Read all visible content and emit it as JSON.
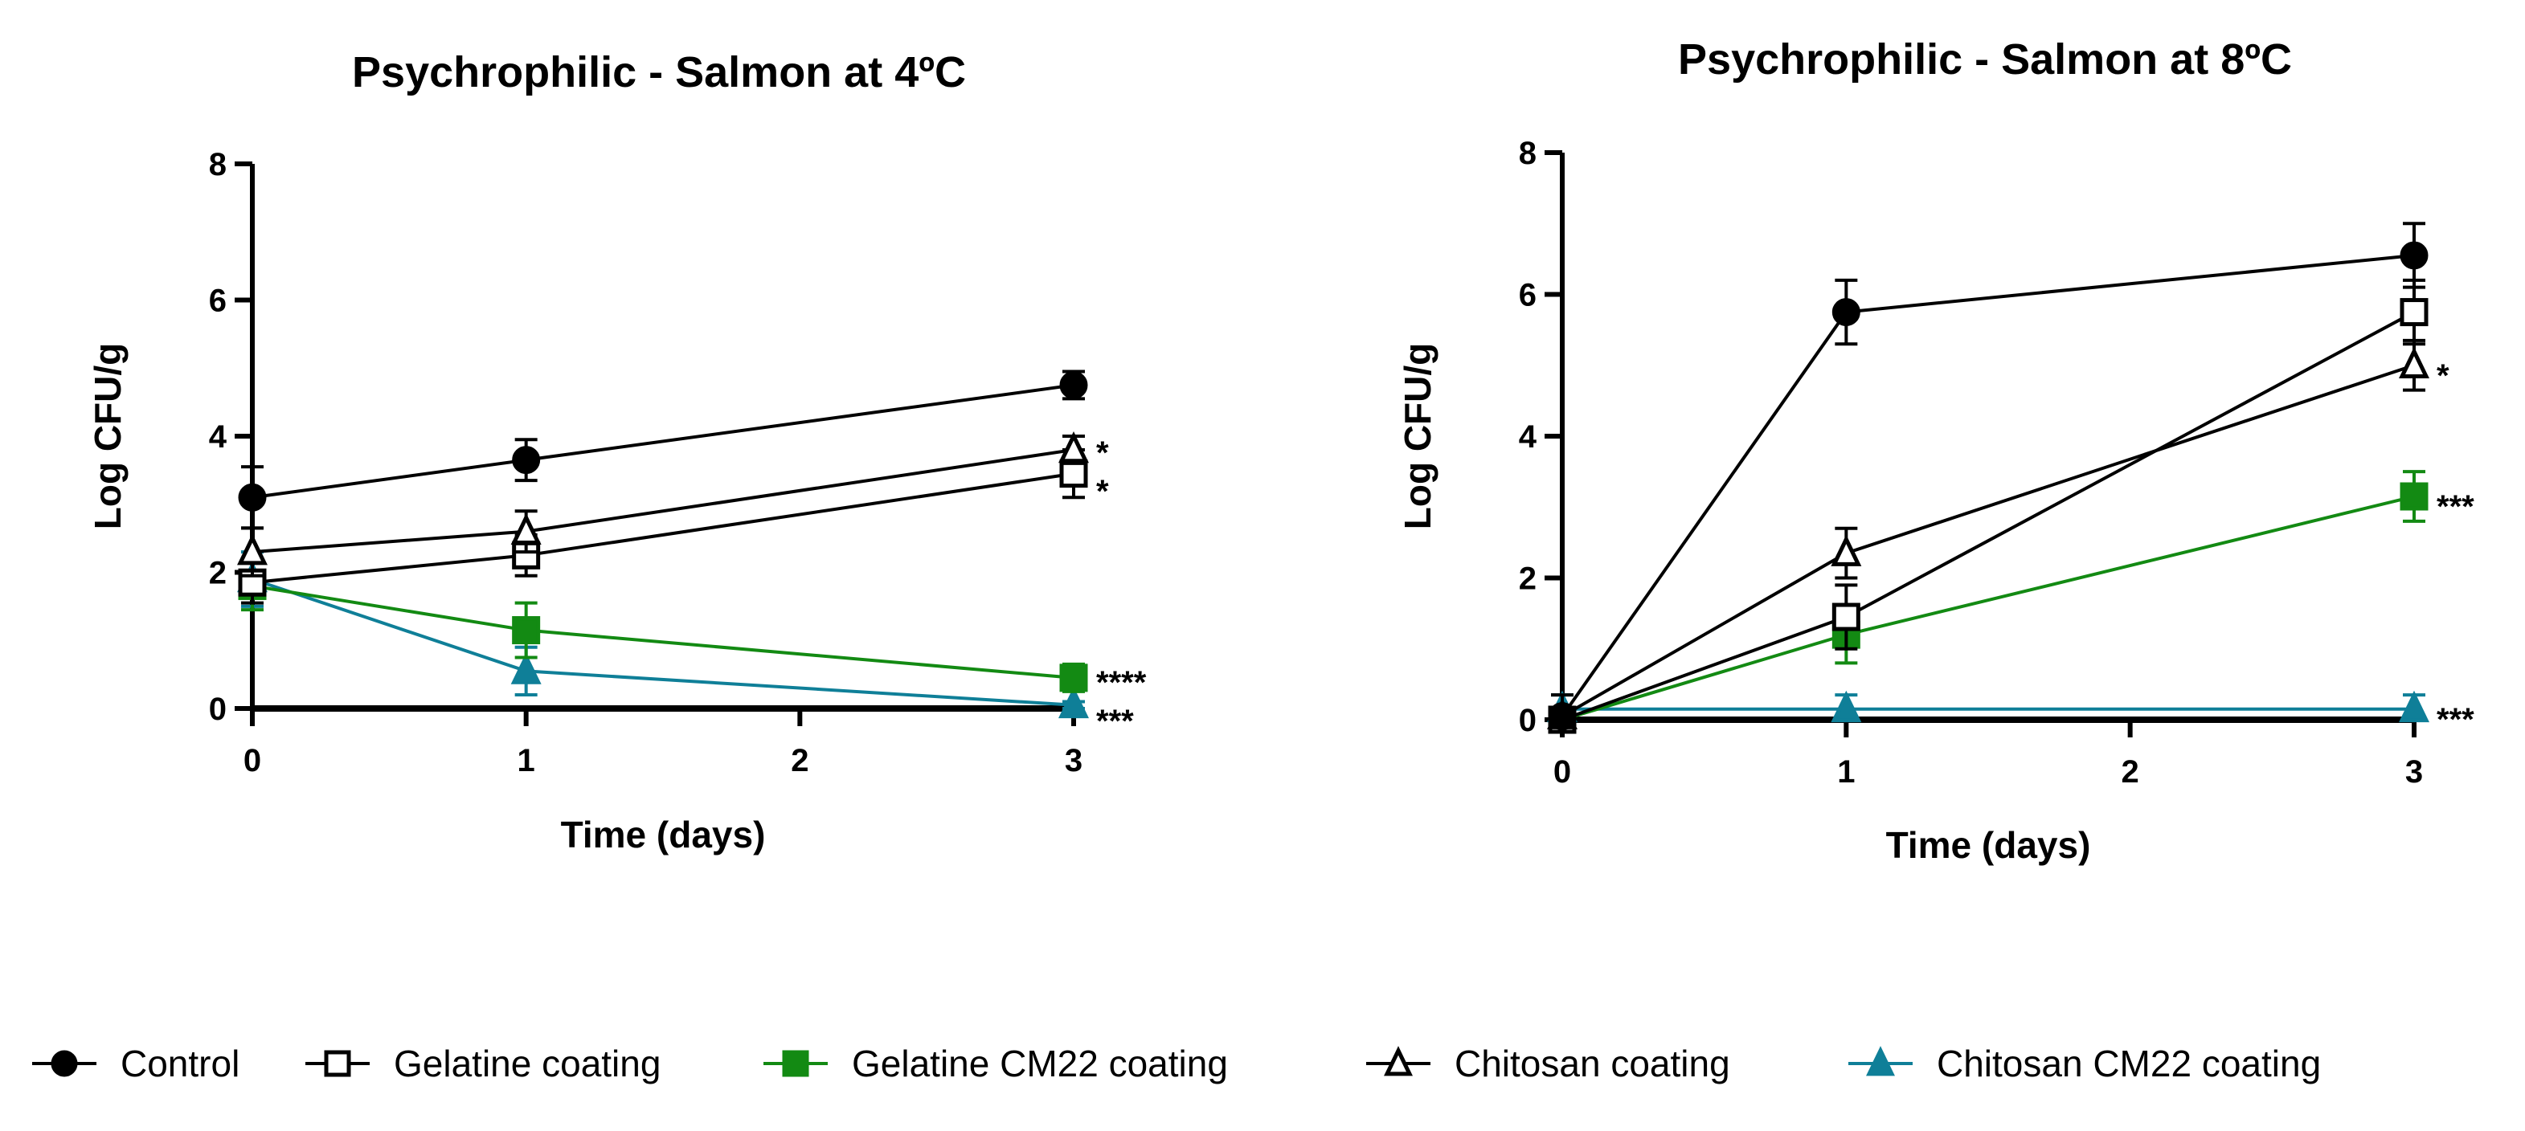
{
  "chart_data": [
    {
      "type": "line",
      "title": "Psychrophilic - Salmon at 4ºC",
      "xlabel": "Time (days)",
      "ylabel": "Log CFU/g",
      "x": [
        0,
        1,
        3
      ],
      "xlim": [
        0,
        3
      ],
      "ylim": [
        0,
        8
      ],
      "xticks": [
        "0",
        "1",
        "2",
        "3"
      ],
      "yticks": [
        "0",
        "2",
        "4",
        "6",
        "8"
      ],
      "grid": false,
      "series": [
        {
          "name": "Control",
          "values": [
            3.1,
            3.65,
            4.75
          ],
          "errors": [
            0.45,
            0.3,
            0.2
          ],
          "annotation": ""
        },
        {
          "name": "Gelatine coating",
          "values": [
            1.85,
            2.25,
            3.45
          ],
          "errors": [
            0.3,
            0.3,
            0.35
          ],
          "annotation": "*"
        },
        {
          "name": "Gelatine CM22 coating",
          "values": [
            1.8,
            1.15,
            0.45
          ],
          "errors": [
            0.35,
            0.4,
            0.2
          ],
          "annotation": "****"
        },
        {
          "name": "Chitosan coating",
          "values": [
            2.3,
            2.6,
            3.8
          ],
          "errors": [
            0.35,
            0.3,
            0.2
          ],
          "annotation": "*"
        },
        {
          "name": "Chitosan CM22 coating",
          "values": [
            1.9,
            0.55,
            0.05
          ],
          "errors": [
            0.4,
            0.35,
            0.05
          ],
          "annotation": "***"
        }
      ]
    },
    {
      "type": "line",
      "title": "Psychrophilic - Salmon at 8ºC",
      "xlabel": "Time (days)",
      "ylabel": "Log CFU/g",
      "x": [
        0,
        1,
        3
      ],
      "xlim": [
        0,
        3
      ],
      "ylim": [
        0,
        8
      ],
      "xticks": [
        "0",
        "1",
        "2",
        "3"
      ],
      "yticks": [
        "0",
        "2",
        "4",
        "6",
        "8"
      ],
      "grid": false,
      "series": [
        {
          "name": "Control",
          "values": [
            0.05,
            5.75,
            6.55
          ],
          "errors": [
            0.3,
            0.45,
            0.45
          ],
          "annotation": ""
        },
        {
          "name": "Gelatine coating",
          "values": [
            0.0,
            1.45,
            5.75
          ],
          "errors": [
            0.1,
            0.45,
            0.45
          ],
          "annotation": ""
        },
        {
          "name": "Gelatine CM22 coating",
          "values": [
            0.0,
            1.2,
            3.15
          ],
          "errors": [
            0.1,
            0.4,
            0.35
          ],
          "annotation": "***"
        },
        {
          "name": "Chitosan coating",
          "values": [
            0.05,
            2.35,
            5.0
          ],
          "errors": [
            0.1,
            0.35,
            0.35
          ],
          "annotation": "*"
        },
        {
          "name": "Chitosan CM22 coating",
          "values": [
            0.15,
            0.15,
            0.15
          ],
          "errors": [
            0.2,
            0.2,
            0.2
          ],
          "annotation": "***"
        }
      ]
    }
  ],
  "legend": {
    "placement": "bottom",
    "items": [
      "Control",
      "Gelatine coating",
      "Gelatine CM22 coating",
      "Chitosan coating",
      "Chitosan CM22 coating"
    ]
  },
  "styles": {
    "Control": {
      "color": "#000000",
      "marker": "circle",
      "fill": true
    },
    "Gelatine coating": {
      "color": "#000000",
      "marker": "square",
      "fill": false
    },
    "Gelatine CM22 coating": {
      "color": "#138a13",
      "marker": "square",
      "fill": true
    },
    "Chitosan coating": {
      "color": "#000000",
      "marker": "triangle",
      "fill": false
    },
    "Chitosan CM22 coating": {
      "color": "#0f7f98",
      "marker": "triangle",
      "fill": true
    }
  }
}
